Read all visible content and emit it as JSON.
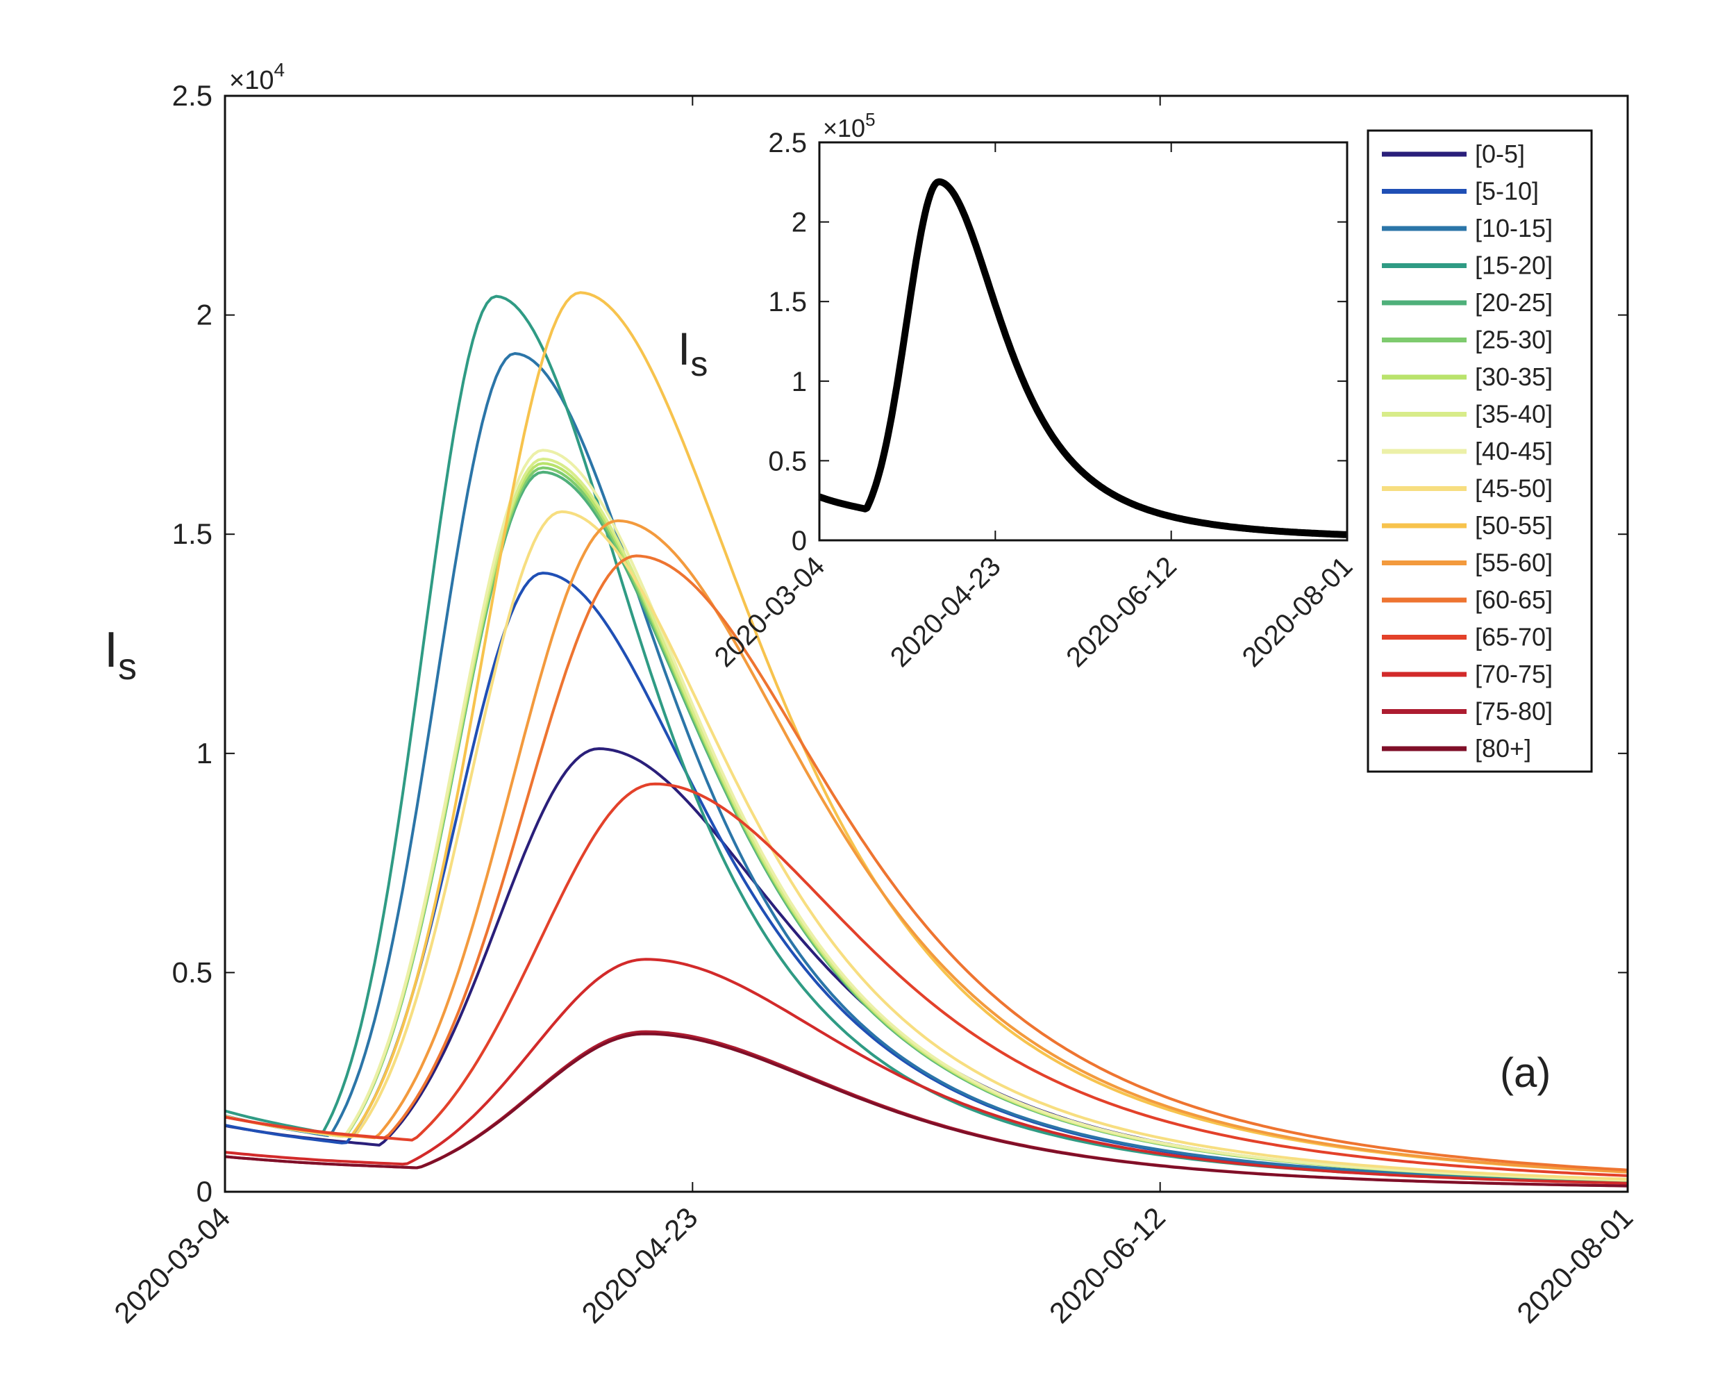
{
  "chart_data": [
    {
      "type": "line",
      "panel_label": "(a)",
      "ylabel": "I",
      "ylabel_sub": "s",
      "y_exponent": "×10",
      "y_exponent_power": "4",
      "x_tick_labels": [
        "2020-03-04",
        "2020-04-23",
        "2020-06-12",
        "2020-08-01"
      ],
      "xlim": [
        0,
        150
      ],
      "ylim": [
        0,
        2.5
      ],
      "y_ticks": [
        0,
        0.5,
        1,
        1.5,
        2,
        2.5
      ],
      "y_tick_labels": [
        "0",
        "0.5",
        "1",
        "1.5",
        "2",
        "2.5"
      ],
      "x_unit_note": "days since 2020-03-04",
      "legend": "top-right",
      "grid": false,
      "series": [
        {
          "name": "[0-5]",
          "color": "#2a1f7a",
          "peak_day": 40,
          "peak": 1.01,
          "start": 0.15
        },
        {
          "name": "[5-10]",
          "color": "#1f4fb5",
          "peak_day": 34,
          "peak": 1.41,
          "start": 0.15
        },
        {
          "name": "[10-15]",
          "color": "#2b75a8",
          "peak_day": 31,
          "peak": 1.91,
          "start": 0.17
        },
        {
          "name": "[15-20]",
          "color": "#2f9b84",
          "peak_day": 29,
          "peak": 2.04,
          "start": 0.18
        },
        {
          "name": "[20-25]",
          "color": "#4fb07a",
          "peak_day": 34,
          "peak": 1.64,
          "start": 0.17
        },
        {
          "name": "[25-30]",
          "color": "#7ecb6e",
          "peak_day": 34,
          "peak": 1.65,
          "start": 0.17
        },
        {
          "name": "[30-35]",
          "color": "#b9e36c",
          "peak_day": 34,
          "peak": 1.66,
          "start": 0.17
        },
        {
          "name": "[35-40]",
          "color": "#d8ec8a",
          "peak_day": 34,
          "peak": 1.67,
          "start": 0.17
        },
        {
          "name": "[40-45]",
          "color": "#ecf0a8",
          "peak_day": 34,
          "peak": 1.69,
          "start": 0.17
        },
        {
          "name": "[45-50]",
          "color": "#f7de80",
          "peak_day": 36,
          "peak": 1.55,
          "start": 0.17
        },
        {
          "name": "[50-55]",
          "color": "#f7c34d",
          "peak_day": 38,
          "peak": 2.05,
          "start": 0.17
        },
        {
          "name": "[55-60]",
          "color": "#f39a3d",
          "peak_day": 42,
          "peak": 1.53,
          "start": 0.17
        },
        {
          "name": "[60-65]",
          "color": "#ee7430",
          "peak_day": 44,
          "peak": 1.45,
          "start": 0.17
        },
        {
          "name": "[65-70]",
          "color": "#e3412a",
          "peak_day": 46,
          "peak": 0.93,
          "start": 0.17
        },
        {
          "name": "[70-75]",
          "color": "#d22a2a",
          "peak_day": 45,
          "peak": 0.53,
          "start": 0.09
        },
        {
          "name": "[75-80]",
          "color": "#ad1c30",
          "peak_day": 45,
          "peak": 0.365,
          "start": 0.08
        },
        {
          "name": "[80+]",
          "color": "#7f0f28",
          "peak_day": 45,
          "peak": 0.36,
          "start": 0.08
        }
      ]
    },
    {
      "type": "line",
      "ylabel": "I",
      "ylabel_sub": "s",
      "y_exponent": "×10",
      "y_exponent_power": "5",
      "x_tick_labels": [
        "2020-03-04",
        "2020-04-23",
        "2020-06-12",
        "2020-08-01"
      ],
      "xlim": [
        0,
        150
      ],
      "ylim": [
        0,
        2.5
      ],
      "y_ticks": [
        0,
        0.5,
        1,
        1.5,
        2,
        2.5
      ],
      "y_tick_labels": [
        "0",
        "0.5",
        "1",
        "1.5",
        "2",
        "2.5"
      ],
      "grid": false,
      "series": [
        {
          "color": "#000000",
          "peak_day": 34,
          "peak": 2.25,
          "start": 0.27
        }
      ]
    }
  ]
}
